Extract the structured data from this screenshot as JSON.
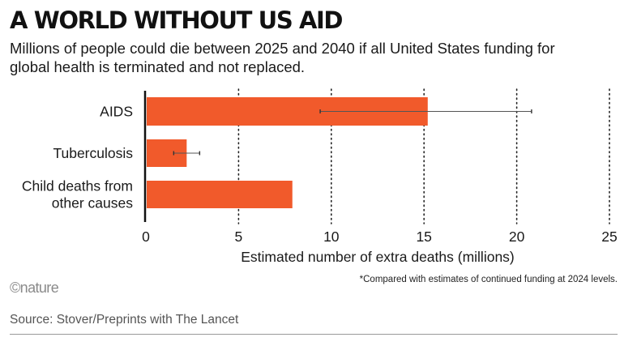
{
  "header": {
    "title": "A WORLD WITHOUT US AID",
    "subtitle": "Millions of people could die between 2025 and 2040 if all United States funding for global health is terminated and not replaced."
  },
  "chart_data": {
    "type": "bar",
    "orientation": "horizontal",
    "categories": [
      {
        "lines": [
          "AIDS"
        ]
      },
      {
        "lines": [
          "Tuberculosis"
        ]
      },
      {
        "lines": [
          "Child deaths from",
          "other causes"
        ]
      }
    ],
    "values": [
      15.2,
      2.2,
      7.9
    ],
    "error_low": [
      9.4,
      1.5,
      null
    ],
    "error_high": [
      20.8,
      2.9,
      null
    ],
    "xlabel": "Estimated number of extra deaths (millions)",
    "xlim": [
      0,
      25
    ],
    "xticks": [
      0,
      5,
      10,
      15,
      20,
      25
    ],
    "grid": "vertical dotted",
    "bar_color": "#f15a2b",
    "error_color": "#555555"
  },
  "footnote": "*Compared with estimates of continued funding at 2024 levels.",
  "brand": "©nature",
  "source": "Source: Stover/Preprints with The Lancet"
}
